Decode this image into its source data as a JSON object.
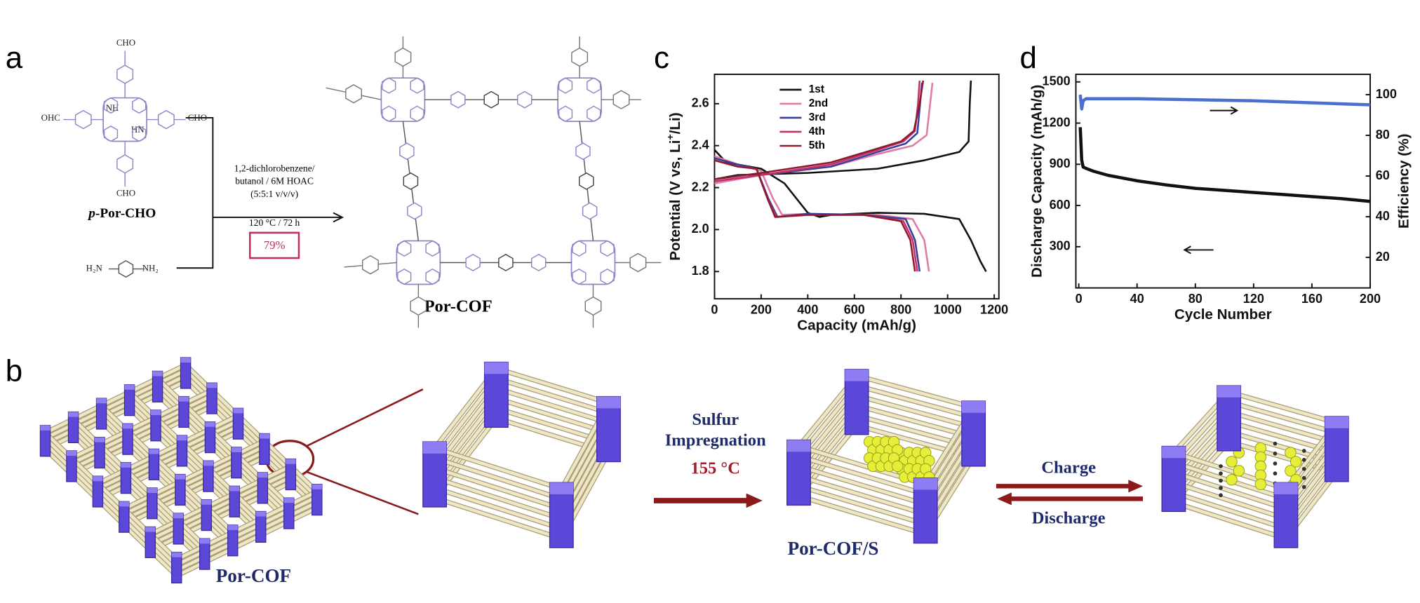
{
  "panel_labels": [
    "a",
    "b",
    "c",
    "d"
  ],
  "scheme_a": {
    "monomer_prefix": "p",
    "monomer": "-Por-CHO",
    "aldehyde_groups": [
      "CHO",
      "OHC",
      "CHO",
      "CHO"
    ],
    "inner_nh": [
      "NH",
      "HN"
    ],
    "conditions": [
      "1,2-dichlorobenzene/",
      "butanol / 6M HOAC",
      "(5:5:1  v/v/v)",
      "120 °C / 72 h"
    ],
    "yield": "79%",
    "amine": [
      "H₂N",
      "NH₂"
    ],
    "product": "Por-COF"
  },
  "scheme_b": {
    "framework": "Por-COF",
    "step1": [
      "Sulfur",
      "Impregnation"
    ],
    "temperature": "155 °C",
    "composite": "Por-COF/S",
    "forward": "Charge",
    "reverse": "Discharge"
  },
  "chart_data": [
    {
      "type": "line",
      "xlabel": "Capacity (mAh/g)",
      "ylabel": [
        "Potential (V vs, Li",
        "+",
        "/Li)"
      ],
      "xlim": [
        0,
        1220
      ],
      "ylim": [
        1.67,
        2.74
      ],
      "xticks": [
        0,
        200,
        400,
        600,
        800,
        1000,
        1200
      ],
      "yticks": [
        1.8,
        {
          "value": 2,
          "label": "2.0"
        },
        2.2,
        2.4,
        2.6
      ],
      "legend": "upper left",
      "series": [
        {
          "name": "1st",
          "color": "#111111",
          "x": [
            0,
            50,
            200,
            300,
            400,
            450,
            500,
            700,
            900,
            1050,
            1100,
            1140,
            1165,
            null,
            0,
            100,
            400,
            700,
            900,
            1050,
            1090,
            1095,
            1100
          ],
          "values": [
            2.38,
            2.32,
            2.29,
            2.22,
            2.08,
            2.06,
            2.07,
            2.08,
            2.075,
            2.05,
            1.95,
            1.85,
            1.8,
            null,
            2.24,
            2.26,
            2.27,
            2.29,
            2.33,
            2.37,
            2.42,
            2.6,
            2.71
          ]
        },
        {
          "name": "2nd",
          "color": "#e07aa8",
          "x": [
            0,
            100,
            200,
            250,
            290,
            400,
            700,
            850,
            900,
            920,
            null,
            0,
            200,
            500,
            700,
            850,
            910,
            925,
            935
          ],
          "values": [
            2.35,
            2.31,
            2.28,
            2.15,
            2.07,
            2.075,
            2.07,
            2.05,
            1.95,
            1.8,
            null,
            2.22,
            2.26,
            2.3,
            2.36,
            2.4,
            2.45,
            2.6,
            2.7
          ]
        },
        {
          "name": "3rd",
          "color": "#3a3f9a",
          "x": [
            0,
            100,
            180,
            230,
            270,
            400,
            650,
            820,
            860,
            880,
            null,
            0,
            200,
            500,
            700,
            820,
            870,
            882,
            890
          ],
          "values": [
            2.34,
            2.31,
            2.29,
            2.15,
            2.06,
            2.075,
            2.07,
            2.05,
            1.95,
            1.8,
            null,
            2.23,
            2.26,
            2.3,
            2.37,
            2.41,
            2.46,
            2.6,
            2.7
          ]
        },
        {
          "name": "4th",
          "color": "#c8306a",
          "x": [
            0,
            100,
            180,
            230,
            265,
            400,
            650,
            810,
            850,
            870,
            null,
            0,
            200,
            500,
            700,
            810,
            860,
            873,
            880
          ],
          "values": [
            2.33,
            2.3,
            2.29,
            2.14,
            2.06,
            2.07,
            2.07,
            2.04,
            1.95,
            1.8,
            null,
            2.23,
            2.26,
            2.31,
            2.38,
            2.42,
            2.47,
            2.6,
            2.71
          ]
        },
        {
          "name": "5th",
          "color": "#8e1b2e",
          "x": [
            0,
            100,
            180,
            230,
            260,
            400,
            640,
            800,
            840,
            860,
            null,
            0,
            200,
            500,
            680,
            800,
            855,
            880,
            895
          ],
          "values": [
            2.33,
            2.3,
            2.29,
            2.14,
            2.06,
            2.07,
            2.07,
            2.04,
            1.95,
            1.8,
            null,
            2.24,
            2.27,
            2.32,
            2.38,
            2.42,
            2.47,
            2.6,
            2.71
          ]
        }
      ]
    },
    {
      "type": "line",
      "xlabel": "Cycle Number",
      "ylabel": "Discharge Capacity (mAh/g)",
      "y2label": "Efficiency (%)",
      "xlim": [
        -2,
        200
      ],
      "ylim": [
        0,
        1555
      ],
      "y2lim": [
        5,
        110
      ],
      "xticks": [
        0,
        40,
        80,
        120,
        160,
        200
      ],
      "yticks": [
        300,
        600,
        900,
        1200,
        1500
      ],
      "y2ticks": [
        20,
        40,
        60,
        80,
        100
      ],
      "series": [
        {
          "color": "#111111",
          "x": [
            1,
            2,
            3,
            5,
            10,
            20,
            40,
            60,
            80,
            100,
            120,
            140,
            160,
            180,
            200
          ],
          "values": [
            1170,
            930,
            880,
            870,
            850,
            820,
            780,
            750,
            725,
            710,
            695,
            680,
            665,
            650,
            630
          ]
        },
        {
          "color": "#4a6fd0",
          "axis": "y2",
          "x": [
            1,
            2,
            3,
            5,
            10,
            20,
            40,
            80,
            120,
            160,
            200
          ],
          "values": [
            100,
            93,
            97,
            98,
            98,
            98,
            98,
            97.5,
            97,
            96,
            95
          ]
        }
      ]
    }
  ]
}
